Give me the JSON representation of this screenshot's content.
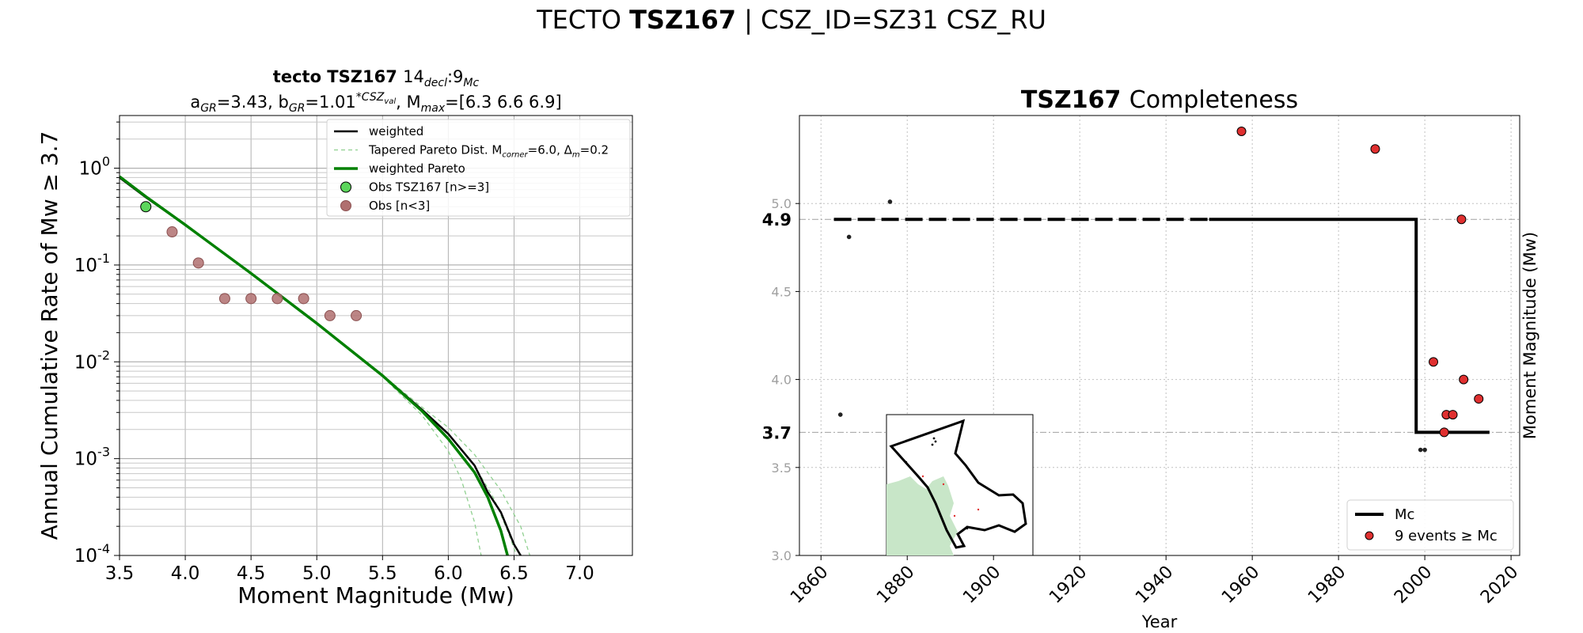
{
  "figure": {
    "suptitle_prefix": "TECTO",
    "suptitle_bold": "TSZ167",
    "suptitle_suffix": "| CSZ_ID=SZ31 CSZ_RU"
  },
  "chart_data": [
    {
      "id": "gr-recurrence",
      "type": "line",
      "title_bold": "tecto TSZ167",
      "title_normal": "14",
      "title_sub1": "decl",
      "title_mid": ":9",
      "title_sub2": "Mc",
      "subtitle_parts": {
        "a_label": "a",
        "a_sub": "GR",
        "a_value": "=3.43,",
        "b_label": "b",
        "b_sub": "GR",
        "b_value": "=1.01",
        "b_sup": "*CSZ",
        "b_sup_sub": "val",
        "mmax_label": ", M",
        "mmax_sub": "max",
        "mmax_value": "=[6.3 6.6 6.9]"
      },
      "xlabel": "Moment Magnitude (Mw)",
      "ylabel": "Annual Cumulative Rate of Mw  ≥  3.7",
      "xlim": [
        3.5,
        7.4
      ],
      "ylim": [
        0.0001,
        3.5
      ],
      "yscale": "log",
      "x_ticks": [
        "3.5",
        "4.0",
        "4.5",
        "5.0",
        "5.5",
        "6.0",
        "6.5",
        "7.0"
      ],
      "x_tick_values": [
        3.5,
        4.0,
        4.5,
        5.0,
        5.5,
        6.0,
        6.5,
        7.0
      ],
      "y_tick_exponents": [
        0,
        -1,
        -2,
        -3,
        -4
      ],
      "y_tick_base": "10",
      "grid": true,
      "legend_position": "top-right",
      "legend": [
        {
          "label": "weighted",
          "kind": "line",
          "color": "#000000"
        },
        {
          "label": "Tapered Pareto Dist. M",
          "sub": "corner",
          "rest": "=6.0, Δ",
          "sub2": "m",
          "rest2": "=0.2",
          "kind": "dashed",
          "color": "#90d090"
        },
        {
          "label": "weighted Pareto",
          "kind": "line",
          "color": "#008000"
        },
        {
          "label": "Obs TSZ167 [n>=3]",
          "kind": "marker",
          "color": "#5cd65c"
        },
        {
          "label": "Obs [n<3]",
          "kind": "marker",
          "color": "#b07070"
        }
      ],
      "series": [
        {
          "name": "weighted",
          "color": "#000000",
          "x": [
            3.5,
            3.7,
            4.0,
            4.5,
            5.0,
            5.5,
            5.8,
            6.0,
            6.2,
            6.3,
            6.4,
            6.5,
            6.55
          ],
          "y": [
            0.8,
            0.5,
            0.26,
            0.082,
            0.025,
            0.0072,
            0.0032,
            0.0018,
            0.00085,
            0.00045,
            0.00028,
            0.00013,
            0.0001
          ]
        },
        {
          "name": "weighted Pareto",
          "color": "#008000",
          "x": [
            3.5,
            3.7,
            4.0,
            4.5,
            5.0,
            5.5,
            5.8,
            6.0,
            6.2,
            6.3,
            6.4,
            6.45
          ],
          "y": [
            0.82,
            0.51,
            0.26,
            0.082,
            0.025,
            0.0072,
            0.0031,
            0.0016,
            0.00072,
            0.0004,
            0.00018,
            0.0001
          ]
        },
        {
          "name": "Tapered Pareto 6.3",
          "color": "#90d090",
          "dashed": true,
          "x": [
            5.5,
            5.8,
            6.0,
            6.1,
            6.2,
            6.25
          ],
          "y": [
            0.007,
            0.0028,
            0.0012,
            0.0006,
            0.00022,
            0.0001
          ]
        },
        {
          "name": "Tapered Pareto 6.6",
          "color": "#90d090",
          "dashed": true,
          "x": [
            5.5,
            5.8,
            6.0,
            6.2,
            6.35,
            6.45,
            6.52
          ],
          "y": [
            0.0072,
            0.0032,
            0.0018,
            0.00085,
            0.00038,
            0.00018,
            0.0001
          ]
        },
        {
          "name": "Tapered Pareto 6.9",
          "color": "#90d090",
          "dashed": true,
          "x": [
            5.5,
            5.8,
            6.0,
            6.2,
            6.4,
            6.55,
            6.62
          ],
          "y": [
            0.0073,
            0.0034,
            0.0021,
            0.0011,
            0.00047,
            0.0002,
            0.0001
          ]
        }
      ],
      "obs_main": [
        {
          "x": 3.7,
          "y": 0.4
        }
      ],
      "obs_other": [
        {
          "x": 3.9,
          "y": 0.22
        },
        {
          "x": 4.1,
          "y": 0.105
        },
        {
          "x": 4.3,
          "y": 0.045
        },
        {
          "x": 4.5,
          "y": 0.045
        },
        {
          "x": 4.7,
          "y": 0.045
        },
        {
          "x": 4.9,
          "y": 0.045
        },
        {
          "x": 5.1,
          "y": 0.03
        },
        {
          "x": 5.3,
          "y": 0.03
        }
      ]
    },
    {
      "id": "completeness",
      "type": "scatter",
      "title_bold": "TSZ167",
      "title_normal": "Completeness",
      "xlabel": "Year",
      "ylabel": "Moment Magnitude (Mw)",
      "xlim": [
        1855,
        2022
      ],
      "ylim": [
        3.0,
        5.5
      ],
      "x_ticks": [
        "1860",
        "1880",
        "1900",
        "1920",
        "1940",
        "1960",
        "1980",
        "2000",
        "2020"
      ],
      "x_tick_values": [
        1860,
        1880,
        1900,
        1920,
        1940,
        1960,
        1980,
        2000,
        2020
      ],
      "y_ticks": [
        "3.0",
        "3.5",
        "4.0",
        "4.5",
        "5.0"
      ],
      "y_tick_values": [
        3.0,
        3.5,
        4.0,
        4.5,
        5.0
      ],
      "mc_labels": [
        {
          "text": "4.9",
          "value": 4.91
        },
        {
          "text": "3.7",
          "value": 3.7
        }
      ],
      "grid": true,
      "legend_position": "bottom-right",
      "legend": [
        {
          "label": "Mc",
          "kind": "line",
          "color": "#000000"
        },
        {
          "label": "9 events  ≥  Mc",
          "kind": "marker",
          "color": "#e03030"
        }
      ],
      "mc_step": {
        "dashed_x": [
          1863,
          1950
        ],
        "dashed_y": 4.91,
        "solid_high_x": [
          1950,
          1998
        ],
        "solid_high_y": 4.91,
        "drop_x": 1998,
        "solid_low_x": [
          1998,
          2015
        ],
        "solid_low_y": 3.7
      },
      "events_above": [
        {
          "x": 1957.5,
          "y": 5.41
        },
        {
          "x": 1988.5,
          "y": 5.31
        },
        {
          "x": 2008.5,
          "y": 4.91
        },
        {
          "x": 2002,
          "y": 4.1
        },
        {
          "x": 2009,
          "y": 4.0
        },
        {
          "x": 2012.5,
          "y": 3.89
        },
        {
          "x": 2005,
          "y": 3.8
        },
        {
          "x": 2006.5,
          "y": 3.8
        },
        {
          "x": 2004.5,
          "y": 3.7
        }
      ],
      "events_below": [
        {
          "x": 1864.5,
          "y": 3.8
        },
        {
          "x": 1866.5,
          "y": 4.81
        },
        {
          "x": 1876,
          "y": 5.01
        },
        {
          "x": 1999,
          "y": 3.6
        },
        {
          "x": 2000,
          "y": 3.6
        }
      ]
    }
  ],
  "inset_map": {
    "colors": {
      "land": "#c8e6c8",
      "outline": "#000000"
    }
  }
}
